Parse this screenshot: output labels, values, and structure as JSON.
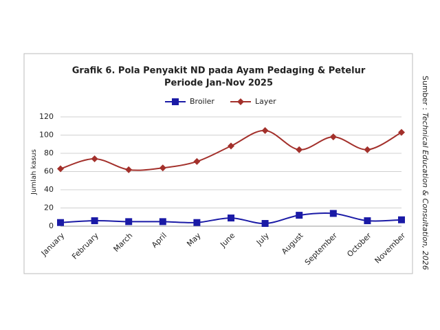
{
  "chart_data": {
    "type": "line",
    "title": [
      "Grafik 6. Pola Penyakit ND pada Ayam Pedaging & Petelur",
      "Periode Jan-Nov 2025"
    ],
    "y_label": "Jumlah kasus",
    "source_prefix": "Sumber :",
    "source": "Technical Education & Consultation, 2026",
    "categories": [
      "January",
      "February",
      "March",
      "April",
      "May",
      "June",
      "July",
      "August",
      "September",
      "October",
      "November"
    ],
    "series": [
      {
        "name": "Broiler",
        "color": "#1a1aa6",
        "marker": "square",
        "values": [
          4,
          6,
          5,
          5,
          4,
          9,
          3,
          12,
          14,
          6,
          7
        ]
      },
      {
        "name": "Layer",
        "color": "#a3302b",
        "marker": "diamond",
        "values": [
          63,
          74,
          62,
          64,
          71,
          88,
          105,
          84,
          98,
          84,
          103
        ]
      }
    ],
    "ylim": [
      0,
      120
    ],
    "yticks": [
      0,
      20,
      40,
      60,
      80,
      100,
      120
    ],
    "grid": true,
    "legend": "top"
  }
}
